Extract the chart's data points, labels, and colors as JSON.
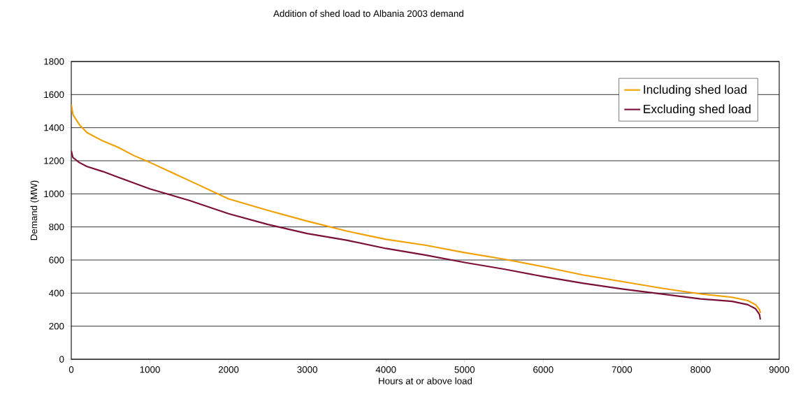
{
  "chart_data": {
    "type": "line",
    "title": "Addition of shed load to Albania 2003 demand",
    "xlabel": "Hours at or above load",
    "ylabel": "Demand (MW)",
    "xlim": [
      0,
      9000
    ],
    "xticks": [
      0,
      1000,
      2000,
      3000,
      4000,
      5000,
      6000,
      7000,
      8000,
      9000
    ],
    "ylim": [
      0,
      1800
    ],
    "yticks": [
      0,
      200,
      400,
      600,
      800,
      1000,
      1200,
      1400,
      1600,
      1800
    ],
    "grid": "y",
    "legend": "top right",
    "marker": "none",
    "line_style": "solid",
    "series": [
      {
        "name": "Including shed load",
        "color": "#f0a000",
        "x": [
          0,
          20,
          100,
          200,
          400,
          600,
          800,
          1000,
          1500,
          2000,
          2500,
          3000,
          3500,
          4000,
          4500,
          5000,
          5500,
          6000,
          6500,
          7000,
          7500,
          8000,
          8400,
          8600,
          8700,
          8750,
          8760
        ],
        "values": [
          1540,
          1480,
          1420,
          1370,
          1320,
          1280,
          1230,
          1190,
          1080,
          970,
          900,
          835,
          775,
          725,
          690,
          645,
          605,
          560,
          510,
          470,
          430,
          395,
          375,
          355,
          330,
          300,
          280
        ]
      },
      {
        "name": "Excluding shed load",
        "color": "#7a1038",
        "x": [
          0,
          20,
          100,
          200,
          400,
          600,
          800,
          1000,
          1500,
          2000,
          2500,
          3000,
          3500,
          4000,
          4500,
          5000,
          5500,
          6000,
          6500,
          7000,
          7500,
          8000,
          8400,
          8600,
          8700,
          8750,
          8760
        ],
        "values": [
          1260,
          1220,
          1190,
          1165,
          1135,
          1100,
          1065,
          1030,
          960,
          880,
          815,
          760,
          720,
          670,
          630,
          585,
          545,
          500,
          460,
          425,
          395,
          365,
          350,
          330,
          305,
          270,
          240
        ]
      }
    ]
  }
}
